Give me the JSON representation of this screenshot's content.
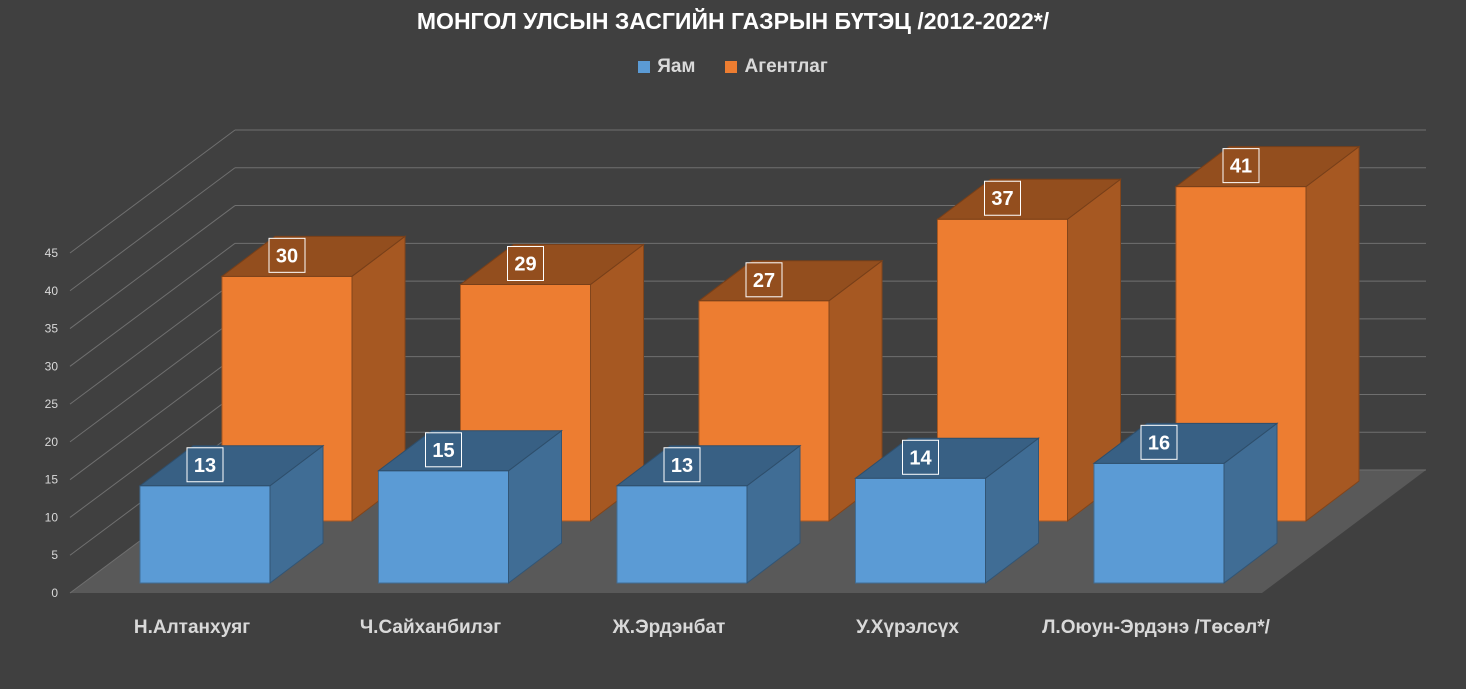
{
  "chart_data": {
    "type": "bar",
    "title": "МОНГОЛ УЛСЫН ЗАСГИЙН ГАЗРЫН БҮТЭЦ /2012-2022*/",
    "categories": [
      "Н.Алтанхуяг",
      "Ч.Сайханбилэг",
      "Ж.Эрдэнбат",
      "У.Хүрэлсүх",
      "Л.Оюун-Эрдэнэ /Төсөл*/"
    ],
    "series": [
      {
        "name": "Яам",
        "values": [
          13,
          15,
          13,
          14,
          16
        ],
        "color": "#5b9bd5"
      },
      {
        "name": "Агентлаг",
        "values": [
          30,
          29,
          27,
          37,
          41
        ],
        "color": "#ed7d31"
      }
    ],
    "ylim": [
      0,
      45
    ],
    "yticks": [
      0,
      5,
      10,
      15,
      20,
      25,
      30,
      35,
      40,
      45
    ],
    "grid": true,
    "legend_position": "top",
    "chart_style": "3d-clustered-column",
    "xlabel": "",
    "ylabel": ""
  }
}
